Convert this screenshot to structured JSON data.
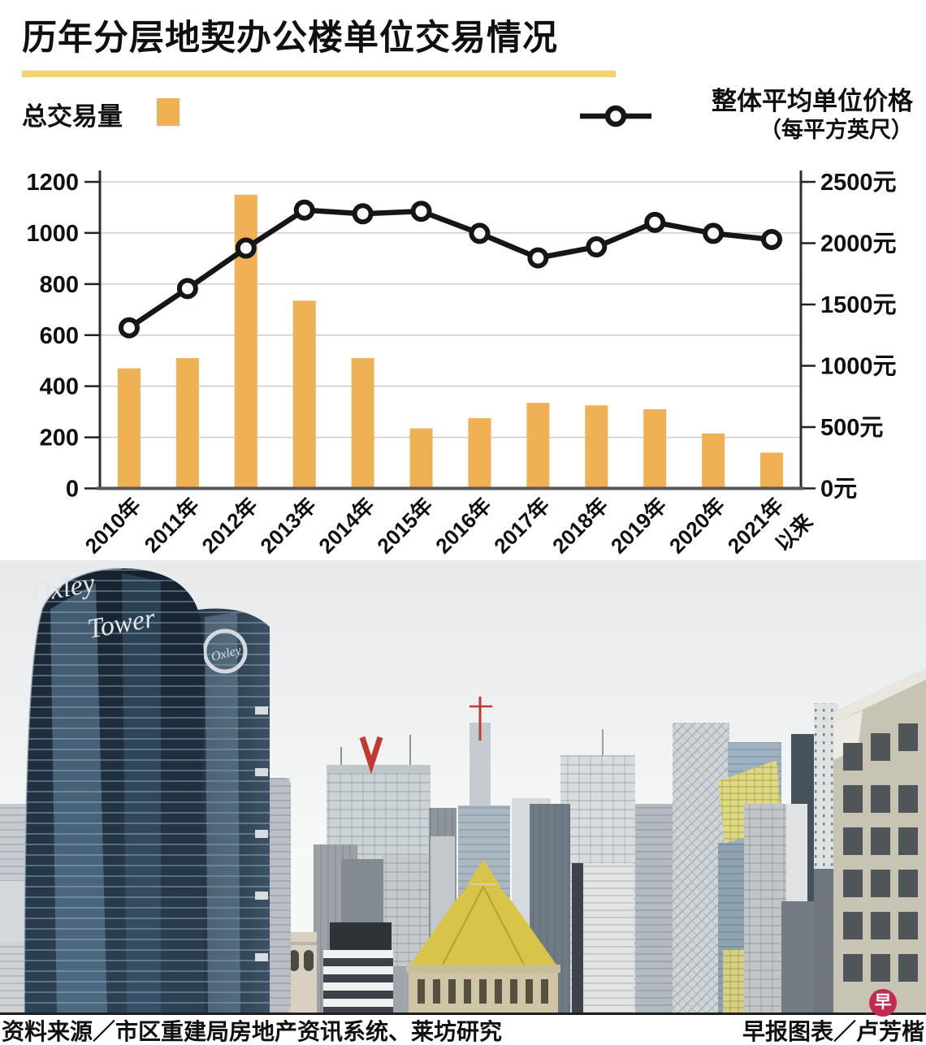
{
  "header": {
    "title": "历年分层地契办公楼单位交易情况"
  },
  "legend": {
    "bars_label": "总交易量",
    "line_label": "整体平均单位价格",
    "line_sublabel": "（每平方英尺）"
  },
  "chart_data": {
    "type": "bar+line",
    "title": "历年分层地契办公楼单位交易情况",
    "categories": [
      "2010年",
      "2011年",
      "2012年",
      "2013年",
      "2014年",
      "2015年",
      "2016年",
      "2017年",
      "2018年",
      "2019年",
      "2020年",
      "2021年以来"
    ],
    "series": [
      {
        "name": "总交易量",
        "type": "bar",
        "axis": "left",
        "values": [
          470,
          510,
          1150,
          735,
          510,
          235,
          275,
          335,
          325,
          310,
          215,
          140
        ]
      },
      {
        "name": "整体平均单位价格（每平方英尺）",
        "type": "line",
        "axis": "right",
        "values": [
          1310,
          1630,
          1960,
          2270,
          2240,
          2260,
          2080,
          1880,
          1970,
          2170,
          2080,
          2030
        ]
      }
    ],
    "left_axis": {
      "min": 0,
      "max": 1200,
      "step": 200,
      "tick_labels": [
        "0",
        "200",
        "400",
        "600",
        "800",
        "1000",
        "1200"
      ]
    },
    "right_axis": {
      "min": 0,
      "max": 2500,
      "step": 500,
      "suffix": "元",
      "tick_labels": [
        "0元",
        "500元",
        "1000元",
        "1500元",
        "2000元",
        "2500元"
      ]
    },
    "grid": true,
    "legend_position": "top",
    "colors": {
      "bar": "#F0B054",
      "line": "#161616",
      "underline": "#F3D46C",
      "logo": "#C22A52"
    }
  },
  "photo": {
    "oxley_line1": "Oxley",
    "oxley_line2": "Tower",
    "logo_glyph": "早"
  },
  "footer": {
    "source": "资料来源／市区重建局房地产资讯系统、莱坊研究",
    "credit": "早报图表／卢芳楷"
  }
}
